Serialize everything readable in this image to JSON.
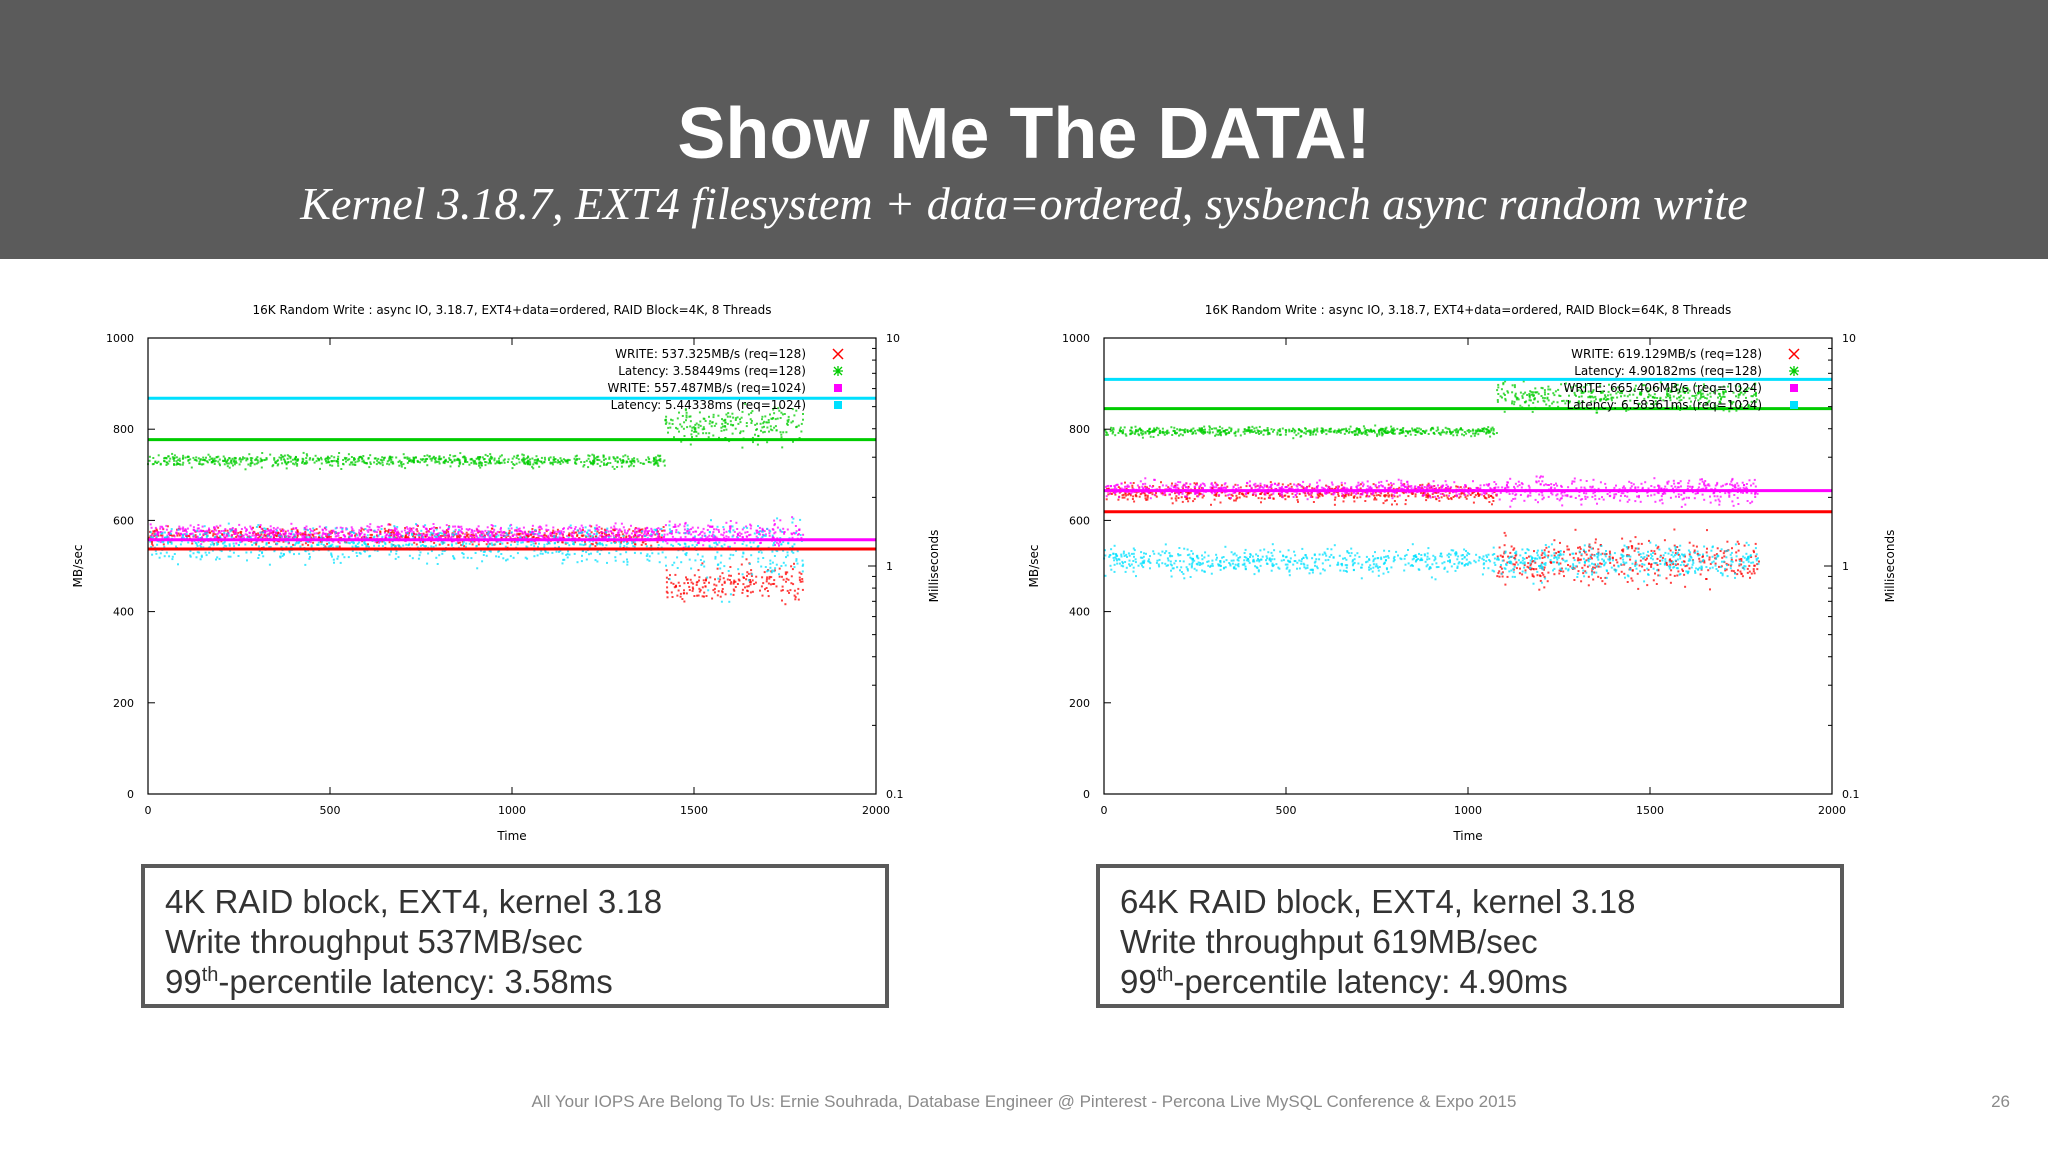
{
  "slide": {
    "title": "Show Me The DATA!",
    "subtitle": "Kernel 3.18.7, EXT4 filesystem + data=ordered, sysbench async random write",
    "footer": "All Your IOPS Are Belong To Us: Ernie Souhrada, Database Engineer @ Pinterest - Percona Live MySQL Conference & Expo 2015",
    "page_number": "26",
    "colors": {
      "header_bg": "#5b5b5b",
      "write_128": "#ff0000",
      "latency_128": "#00cc00",
      "write_1024": "#ff00ff",
      "latency_1024": "#00e0ff"
    }
  },
  "captions": [
    {
      "line1": "4K RAID block, EXT4, kernel 3.18",
      "line2": "Write throughput 537MB/sec",
      "line3_prefix": "99",
      "line3_sup": "th",
      "line3_suffix": "-percentile latency: 3.58ms"
    },
    {
      "line1": "64K RAID block, EXT4, kernel 3.18",
      "line2": "Write throughput 619MB/sec",
      "line3_prefix": "99",
      "line3_sup": "th",
      "line3_suffix": "-percentile latency: 4.90ms"
    }
  ],
  "chart_data": [
    {
      "type": "scatter",
      "title": "16K Random Write : async IO, 3.18.7, EXT4+data=ordered, RAID Block=4K, 8 Threads",
      "xlabel": "Time",
      "ylabel": "MB/sec",
      "y2label": "Milliseconds",
      "xlim": [
        0,
        2000
      ],
      "ylim": [
        0,
        1000
      ],
      "y2lim": [
        0.1,
        10
      ],
      "y2_scale": "log",
      "xticks": [
        "0",
        "500",
        "1000",
        "1500",
        "2000"
      ],
      "yticks": [
        "0",
        "200",
        "400",
        "600",
        "800",
        "1000"
      ],
      "y2ticks": [
        "0.1",
        "1",
        "10"
      ],
      "legend_position": "top-right",
      "series": [
        {
          "name": "WRITE: 537.325MB/s (req=128)",
          "axis": "y",
          "color": "#ff0000",
          "marker": "x",
          "reference": 537.3,
          "segments": [
            {
              "x": [
                0,
                1420
              ],
              "mean": 565,
              "spread": 14
            },
            {
              "x": [
                1420,
                1800
              ],
              "mean": 460,
              "spread": 28
            }
          ]
        },
        {
          "name": "Latency: 3.58449ms (req=128)",
          "axis": "y2",
          "color": "#00cc00",
          "marker": "*",
          "reference": 3.584,
          "segments": [
            {
              "x": [
                0,
                1420
              ],
              "mean": 2.9,
              "spread": 0.12
            },
            {
              "x": [
                1420,
                1800
              ],
              "mean": 4.2,
              "spread": 0.5
            }
          ]
        },
        {
          "name": "WRITE: 557.487MB/s (req=1024)",
          "axis": "y",
          "color": "#ff00ff",
          "marker": "square",
          "reference": 557.5,
          "segments": [
            {
              "x": [
                0,
                1420
              ],
              "mean": 572,
              "spread": 12
            },
            {
              "x": [
                1420,
                1800
              ],
              "mean": 570,
              "spread": 20
            }
          ]
        },
        {
          "name": "Latency: 5.44338ms (req=1024)",
          "axis": "y2",
          "color": "#00e0ff",
          "marker": "square",
          "reference": 5.443,
          "segments": [
            {
              "x": [
                0,
                1420
              ],
              "mean": 1.25,
              "spread": 0.15
            },
            {
              "x": [
                1420,
                1800
              ],
              "mean": 1.2,
              "spread": 0.25
            }
          ]
        }
      ]
    },
    {
      "type": "scatter",
      "title": "16K Random Write : async IO, 3.18.7, EXT4+data=ordered, RAID Block=64K, 8 Threads",
      "xlabel": "Time",
      "ylabel": "MB/sec",
      "y2label": "Milliseconds",
      "xlim": [
        0,
        2000
      ],
      "ylim": [
        0,
        1000
      ],
      "y2lim": [
        0.1,
        10
      ],
      "y2_scale": "log",
      "xticks": [
        "0",
        "500",
        "1000",
        "1500",
        "2000"
      ],
      "yticks": [
        "0",
        "200",
        "400",
        "600",
        "800",
        "1000"
      ],
      "y2ticks": [
        "0.1",
        "1",
        "10"
      ],
      "legend_position": "top-right",
      "series": [
        {
          "name": "WRITE: 619.129MB/s (req=128)",
          "axis": "y",
          "color": "#ff0000",
          "marker": "x",
          "reference": 619.1,
          "segments": [
            {
              "x": [
                0,
                1080
              ],
              "mean": 660,
              "spread": 14
            },
            {
              "x": [
                1080,
                1800
              ],
              "mean": 510,
              "spread": 35
            }
          ]
        },
        {
          "name": "Latency: 4.90182ms (req=128)",
          "axis": "y2",
          "color": "#00cc00",
          "marker": "*",
          "reference": 4.902,
          "segments": [
            {
              "x": [
                0,
                1080
              ],
              "mean": 3.9,
              "spread": 0.12
            },
            {
              "x": [
                1080,
                1800
              ],
              "mean": 5.6,
              "spread": 0.5
            }
          ]
        },
        {
          "name": "WRITE: 665.406MB/s (req=1024)",
          "axis": "y",
          "color": "#ff00ff",
          "marker": "square",
          "reference": 665.4,
          "segments": [
            {
              "x": [
                0,
                1080
              ],
              "mean": 668,
              "spread": 12
            },
            {
              "x": [
                1080,
                1800
              ],
              "mean": 665,
              "spread": 18
            }
          ]
        },
        {
          "name": "Latency: 6.58361ms (req=1024)",
          "axis": "y2",
          "color": "#00e0ff",
          "marker": "square",
          "reference": 6.584,
          "segments": [
            {
              "x": [
                0,
                1080
              ],
              "mean": 1.05,
              "spread": 0.1
            },
            {
              "x": [
                1080,
                1800
              ],
              "mean": 1.05,
              "spread": 0.12
            }
          ]
        }
      ]
    }
  ]
}
